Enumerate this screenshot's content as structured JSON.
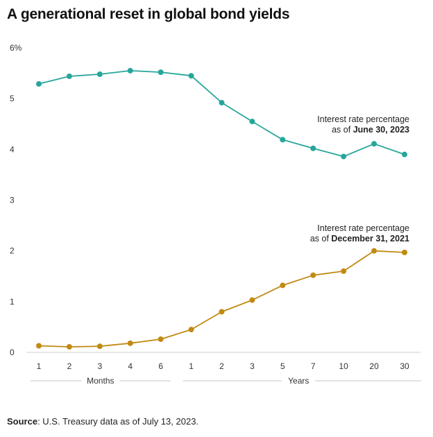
{
  "title": "A generational reset in global bond yields",
  "source": {
    "label": "Source",
    "text": ": U.S. Treasury data as of July 13, 2023."
  },
  "chart_data": {
    "type": "line",
    "categories": [
      "1",
      "2",
      "3",
      "4",
      "6",
      "1",
      "2",
      "3",
      "5",
      "7",
      "10",
      "20",
      "30"
    ],
    "groups": [
      {
        "label": "Months",
        "start": 0,
        "end": 4
      },
      {
        "label": "Years",
        "start": 5,
        "end": 12
      }
    ],
    "ylim": [
      0,
      6
    ],
    "yticks": [
      0,
      1,
      2,
      3,
      4,
      5,
      6
    ],
    "ytick_labels": [
      "0",
      "1",
      "2",
      "3",
      "4",
      "5",
      "6%"
    ],
    "grid": false,
    "series": [
      {
        "name_line1": "Interest rate percentage",
        "name_prefix": "as of ",
        "name_date": "June 30, 2023",
        "color": "#26a69a",
        "values": [
          5.29,
          5.44,
          5.48,
          5.55,
          5.52,
          5.45,
          4.92,
          4.55,
          4.19,
          4.02,
          3.86,
          4.11,
          3.9
        ]
      },
      {
        "name_line1": "Interest rate percentage",
        "name_prefix": "as of ",
        "name_date": "December 31, 2021",
        "color": "#c18a12",
        "values": [
          0.13,
          0.11,
          0.12,
          0.18,
          0.26,
          0.45,
          0.8,
          1.03,
          1.32,
          1.52,
          1.6,
          2.0,
          1.97
        ]
      }
    ]
  }
}
